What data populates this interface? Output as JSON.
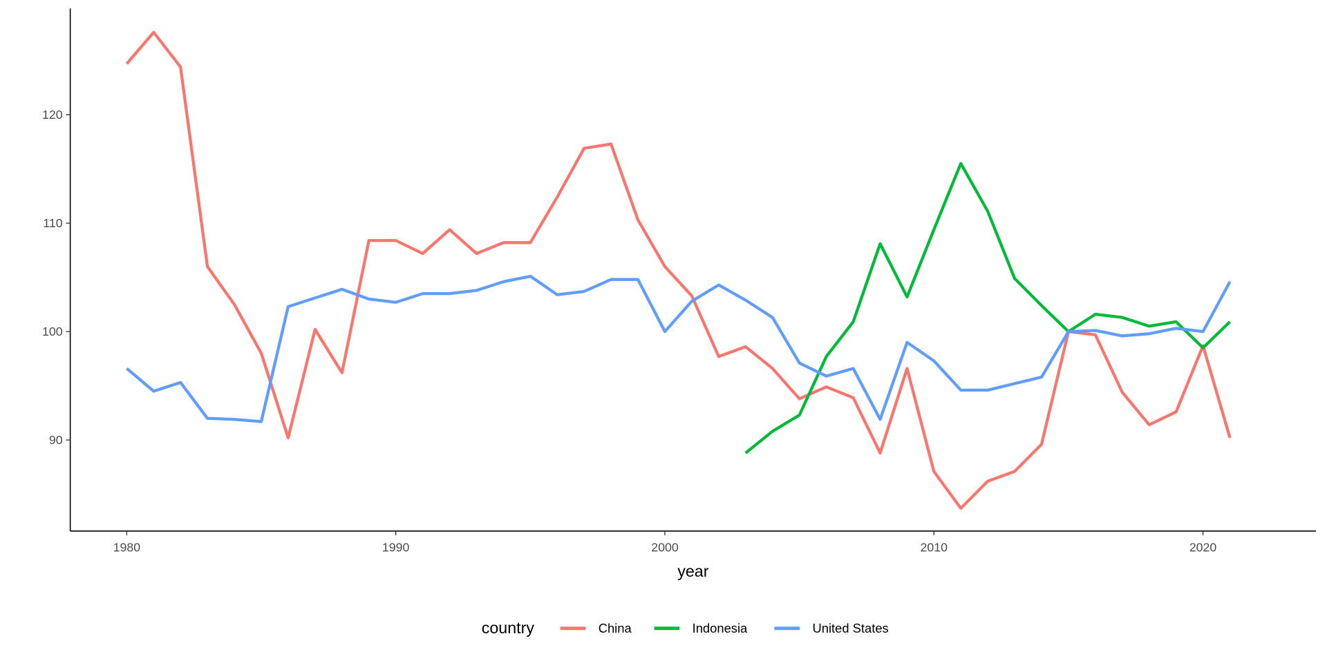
{
  "chart_data": {
    "type": "line",
    "title": "",
    "xlabel": "year",
    "ylabel": "",
    "xlim": [
      1977.9,
      2024.2
    ],
    "ylim": [
      81.6,
      129.8
    ],
    "x_ticks": [
      1980,
      1990,
      2000,
      2010,
      2020
    ],
    "y_ticks": [
      90,
      100,
      110,
      120
    ],
    "grid": false,
    "legend": {
      "title": "country",
      "placement": "bottom"
    },
    "series": [
      {
        "name": "China",
        "color": "#F8766D",
        "x": [
          1980,
          1981,
          1982,
          1983,
          1984,
          1985,
          1986,
          1987,
          1988,
          1989,
          1990,
          1991,
          1992,
          1993,
          1994,
          1995,
          1996,
          1997,
          1998,
          1999,
          2000,
          2001,
          2002,
          2003,
          2004,
          2005,
          2006,
          2007,
          2008,
          2009,
          2010,
          2011,
          2012,
          2013,
          2014,
          2015,
          2016,
          2017,
          2018,
          2019,
          2020,
          2021
        ],
        "values": [
          124.7,
          127.6,
          124.4,
          106.0,
          102.5,
          98.0,
          90.2,
          100.2,
          96.2,
          108.4,
          108.4,
          107.2,
          109.4,
          107.2,
          108.2,
          108.2,
          112.4,
          116.9,
          117.3,
          110.3,
          106.0,
          103.3,
          97.7,
          98.6,
          96.6,
          93.8,
          94.9,
          93.9,
          88.8,
          96.6,
          87.1,
          83.7,
          86.2,
          87.1,
          89.6,
          100.0,
          99.7,
          94.4,
          91.4,
          92.6,
          98.7,
          90.2
        ]
      },
      {
        "name": "Indonesia",
        "color": "#00BA38",
        "x": [
          2003,
          2004,
          2005,
          2006,
          2007,
          2008,
          2009,
          2010,
          2011,
          2012,
          2013,
          2014,
          2015,
          2016,
          2017,
          2018,
          2019,
          2020,
          2021
        ],
        "values": [
          88.8,
          90.8,
          92.3,
          97.7,
          100.9,
          108.1,
          103.2,
          109.4,
          115.5,
          111.1,
          104.9,
          102.4,
          100.0,
          101.6,
          101.3,
          100.5,
          100.9,
          98.5,
          100.9
        ]
      },
      {
        "name": "United States",
        "color": "#619CFF",
        "x": [
          1980,
          1981,
          1982,
          1983,
          1984,
          1985,
          1986,
          1987,
          1988,
          1989,
          1990,
          1991,
          1992,
          1993,
          1994,
          1995,
          1996,
          1997,
          1998,
          1999,
          2000,
          2001,
          2002,
          2003,
          2004,
          2005,
          2006,
          2007,
          2008,
          2009,
          2010,
          2011,
          2012,
          2013,
          2014,
          2015,
          2016,
          2017,
          2018,
          2019,
          2020,
          2021
        ],
        "values": [
          96.6,
          94.5,
          95.3,
          92.0,
          91.9,
          91.7,
          102.3,
          103.1,
          103.9,
          103.0,
          102.7,
          103.5,
          103.5,
          103.8,
          104.6,
          105.1,
          103.4,
          103.7,
          104.8,
          104.8,
          100.0,
          102.8,
          104.3,
          102.9,
          101.3,
          97.1,
          95.9,
          96.6,
          91.9,
          99.0,
          97.3,
          94.6,
          94.6,
          95.2,
          95.8,
          100.0,
          100.1,
          99.6,
          99.8,
          100.3,
          100.0,
          104.6
        ]
      }
    ]
  }
}
